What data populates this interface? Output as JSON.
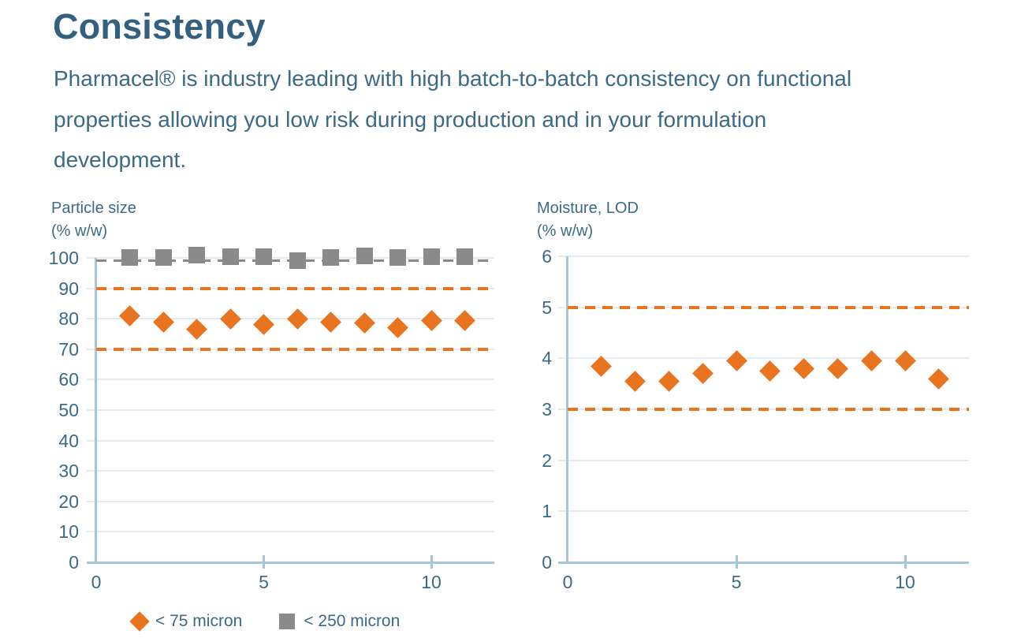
{
  "page": {
    "heading": "Consistency",
    "intro_lines": [
      "Pharmacel® is industry leading with high batch-to-batch consistency on functional",
      "properties allowing you low risk during production and in your formulation",
      "development."
    ]
  },
  "colors": {
    "heading_text": "#33607E",
    "body_text": "#3C6A86",
    "accent_orange": "#E87420",
    "marker_gray": "#8A8A8A",
    "gridline": "#E2EBF2",
    "axis_line": "#A9C5D8"
  },
  "legend": {
    "items": [
      {
        "label": "< 75 micron",
        "marker": "diamond",
        "color": "#E87420"
      },
      {
        "label": "< 250 micron",
        "marker": "square",
        "color": "#8A8A8A"
      }
    ]
  },
  "chart_data": [
    {
      "type": "scatter",
      "title": "Particle size",
      "subtitle": "(% w/w)",
      "x": [
        1,
        2,
        3,
        4,
        5,
        6,
        7,
        8,
        9,
        10,
        11
      ],
      "series": [
        {
          "name": "< 75 micron",
          "marker": "diamond",
          "color": "#E87420",
          "values": [
            81,
            79,
            76.5,
            80,
            78,
            80,
            79,
            78.5,
            77,
            79.5,
            79.5
          ]
        },
        {
          "name": "< 250 micron",
          "marker": "square",
          "color": "#8A8A8A",
          "values": [
            100.2,
            100.1,
            100.9,
            100.4,
            100.4,
            99,
            100.2,
            100.6,
            100.2,
            100.4,
            100.4
          ]
        }
      ],
      "limit_lines": [
        {
          "value": 99,
          "color": "#8A8A8A"
        },
        {
          "value": 90,
          "color": "#E87420"
        },
        {
          "value": 70,
          "color": "#E87420"
        }
      ],
      "ylim": [
        0,
        100
      ],
      "yticks": [
        0,
        10,
        20,
        30,
        40,
        50,
        60,
        70,
        80,
        90,
        100
      ],
      "xlim": [
        0,
        11.9
      ],
      "xticks": [
        0,
        5,
        10
      ],
      "grid": true,
      "legend_position": "bottom"
    },
    {
      "type": "scatter",
      "title": "Moisture, LOD",
      "subtitle": "(% w/w)",
      "x": [
        1,
        2,
        3,
        4,
        5,
        6,
        7,
        8,
        9,
        10,
        11
      ],
      "series": [
        {
          "name": "< 75 micron",
          "marker": "diamond",
          "color": "#E87420",
          "values": [
            3.85,
            3.55,
            3.55,
            3.7,
            3.95,
            3.75,
            3.8,
            3.8,
            3.95,
            3.95,
            3.6
          ]
        }
      ],
      "limit_lines": [
        {
          "value": 5,
          "color": "#E87420"
        },
        {
          "value": 3,
          "color": "#E87420"
        }
      ],
      "ylim": [
        0,
        6
      ],
      "yticks": [
        0,
        1,
        2,
        3,
        4,
        5,
        6
      ],
      "xlim": [
        0,
        11.9
      ],
      "xticks": [
        0,
        5,
        10
      ],
      "grid": true,
      "legend_position": "none"
    }
  ]
}
